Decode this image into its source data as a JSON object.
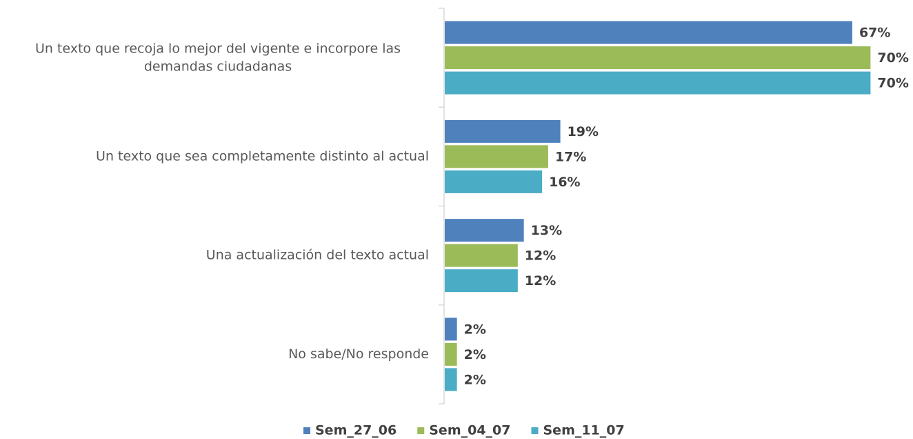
{
  "chart_data": {
    "type": "hbar",
    "categories": [
      "Un texto que recoja lo mejor del vigente e incorpore las demandas ciudadanas",
      "Un texto que sea completamente distinto al actual",
      "Una actualización del texto actual",
      "No sabe/No responde"
    ],
    "series": [
      {
        "name": "Sem_27_06",
        "color": "#4f81bd",
        "values": [
          67,
          19,
          13,
          2
        ],
        "value_labels": [
          "67%",
          "19%",
          "13%",
          "2%"
        ]
      },
      {
        "name": "Sem_04_07",
        "color": "#9bbb59",
        "values": [
          70,
          17,
          12,
          2
        ],
        "value_labels": [
          "70%",
          "17%",
          "12%",
          "2%"
        ]
      },
      {
        "name": "Sem_11_07",
        "color": "#4bacc6",
        "values": [
          70,
          16,
          12,
          2
        ],
        "value_labels": [
          "70%",
          "16%",
          "12%",
          "2%"
        ]
      }
    ],
    "legend": "bottom"
  }
}
